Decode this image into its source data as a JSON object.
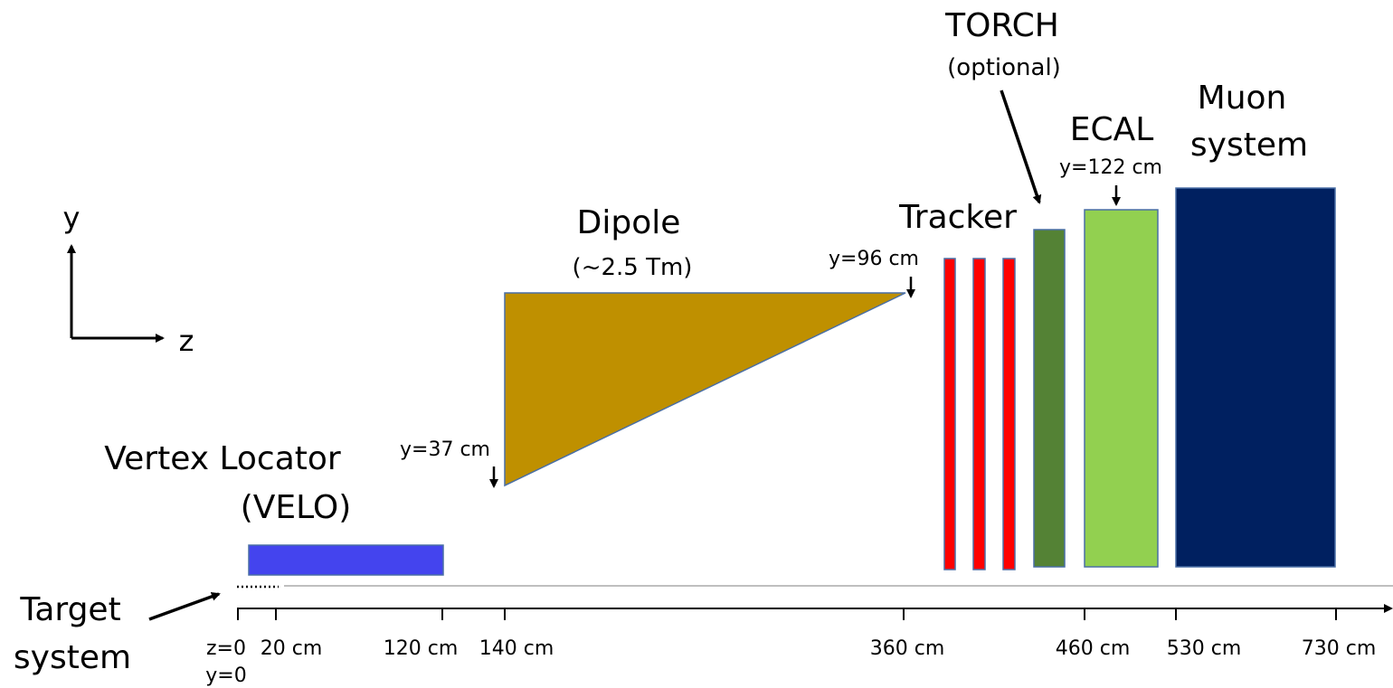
{
  "labels": {
    "torch": "TORCH",
    "torch_note": "(optional)",
    "muon_line1": "Muon",
    "muon_line2": "system",
    "ecal": "ECAL",
    "ecal_height": "y=122 cm",
    "tracker": "Tracker",
    "dipole": "Dipole",
    "dipole_field": "(~2.5 Tm)",
    "dipole_end_height": "y=96 cm",
    "dipole_start_height": "y=37 cm",
    "velo_line1": "Vertex Locator",
    "velo_line2": "(VELO)",
    "target_line1": "Target",
    "target_line2": "system",
    "axis_y": "y",
    "axis_z": "z",
    "origin_z": "z=0",
    "origin_y": "y=0"
  },
  "z_ticks": [
    "20 cm",
    "120 cm",
    "140 cm",
    "360 cm",
    "460 cm",
    "530 cm",
    "730 cm"
  ],
  "colors": {
    "velo": "#4444ee",
    "dipole": "#bf9000",
    "tracker": "#ff0000",
    "torch": "#548235",
    "ecal": "#92d050",
    "muon": "#002060",
    "outline": "#4a6fa5"
  }
}
